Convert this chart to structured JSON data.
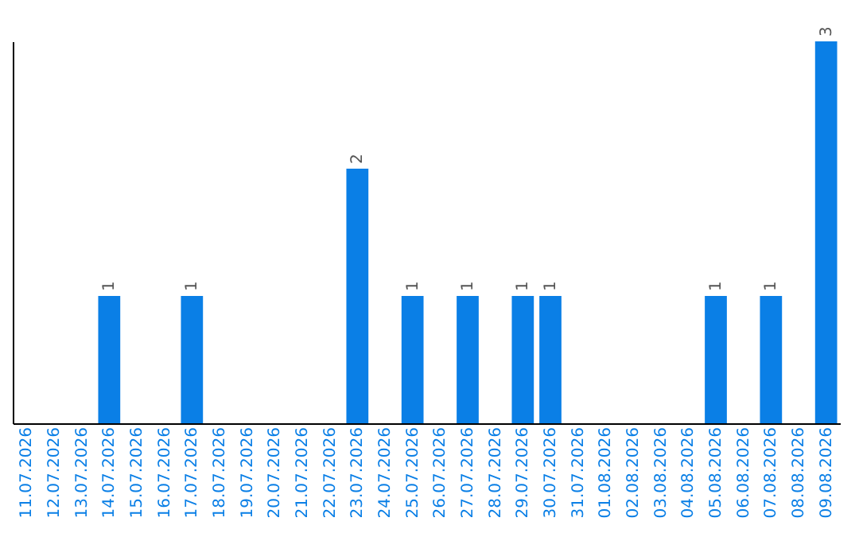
{
  "chart_data": {
    "type": "bar",
    "categories": [
      "11.07.2026",
      "12.07.2026",
      "13.07.2026",
      "14.07.2026",
      "15.07.2026",
      "16.07.2026",
      "17.07.2026",
      "18.07.2026",
      "19.07.2026",
      "20.07.2026",
      "21.07.2026",
      "22.07.2026",
      "23.07.2026",
      "24.07.2026",
      "25.07.2026",
      "26.07.2026",
      "27.07.2026",
      "28.07.2026",
      "29.07.2026",
      "30.07.2026",
      "31.07.2026",
      "01.08.2026",
      "02.08.2026",
      "03.08.2026",
      "04.08.2026",
      "05.08.2026",
      "06.08.2026",
      "07.08.2026",
      "08.08.2026",
      "09.08.2026"
    ],
    "values": [
      null,
      null,
      null,
      1,
      null,
      null,
      1,
      null,
      null,
      null,
      null,
      null,
      2,
      null,
      1,
      null,
      1,
      null,
      1,
      1,
      null,
      null,
      null,
      null,
      null,
      1,
      null,
      1,
      null,
      3
    ],
    "color": "#0a7fe6",
    "data_labels": true,
    "grid": false
  }
}
